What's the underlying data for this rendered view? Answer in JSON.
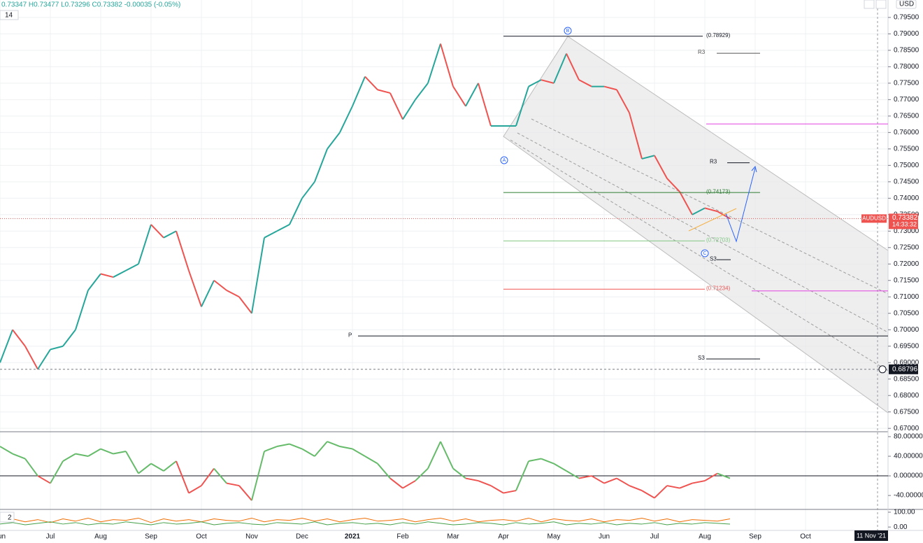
{
  "header": {
    "ohlc": "0.73347 H0.73477 L0.73296 C0.73382 -0.00035 (-0.05%)",
    "interval": "14",
    "currency": "USD",
    "symbol": "AUDUSD",
    "countdown": "14:33:32",
    "crosshair_date": "11 Nov '21",
    "sub_interval": "2",
    "wave_labels": [
      "A",
      "B",
      "C"
    ]
  },
  "chart_data": [
    {
      "type": "line",
      "color_rule": "direction",
      "up_color": "#26a69a",
      "down_color": "#ef5350",
      "categories": [
        "Jun",
        null,
        null,
        null,
        "Jul",
        null,
        null,
        null,
        "Aug",
        null,
        null,
        null,
        "Sep",
        null,
        null,
        null,
        "Oct",
        null,
        null,
        null,
        "Nov",
        null,
        null,
        null,
        "Dec",
        null,
        null,
        null,
        "2021",
        null,
        null,
        null,
        "Feb",
        null,
        null,
        null,
        "Mar",
        null,
        null,
        null,
        "Apr",
        null,
        null,
        null,
        "May",
        null,
        null,
        null,
        "Jun",
        null,
        null,
        null,
        "Jul",
        null,
        null,
        null,
        "Aug",
        null,
        null,
        null,
        "Sep",
        null,
        null,
        null,
        "Oct"
      ],
      "values": [
        0.69,
        0.7,
        0.695,
        0.688,
        0.694,
        0.695,
        0.7,
        0.712,
        0.717,
        0.716,
        0.718,
        0.72,
        0.732,
        0.728,
        0.73,
        0.718,
        0.707,
        0.715,
        0.712,
        0.71,
        0.705,
        0.728,
        0.73,
        0.732,
        0.74,
        0.745,
        0.755,
        0.76,
        0.768,
        0.777,
        0.773,
        0.772,
        0.764,
        0.77,
        0.775,
        0.787,
        0.774,
        0.768,
        0.775,
        0.762,
        0.762,
        0.762,
        0.774,
        0.776,
        0.775,
        0.784,
        0.776,
        0.774,
        0.774,
        0.773,
        0.766,
        0.752,
        0.753,
        0.746,
        0.742,
        0.735,
        0.737,
        0.736,
        0.73382,
        null,
        null,
        null,
        null,
        null,
        null
      ],
      "ylim": [
        0.6694,
        0.8003
      ],
      "yticks": [
        {
          "value": 0.67,
          "label": "0.67000"
        },
        {
          "value": 0.675,
          "label": "0.67500"
        },
        {
          "value": 0.68,
          "label": "0.68000"
        },
        {
          "value": 0.685,
          "label": "0.68500"
        },
        {
          "value": 0.69,
          "label": "0.69000"
        },
        {
          "value": 0.695,
          "label": "0.69500"
        },
        {
          "value": 0.7,
          "label": "0.70000"
        },
        {
          "value": 0.705,
          "label": "0.70500"
        },
        {
          "value": 0.71,
          "label": "0.71000"
        },
        {
          "value": 0.715,
          "label": "0.71500"
        },
        {
          "value": 0.72,
          "label": "0.72000"
        },
        {
          "value": 0.725,
          "label": "0.72500"
        },
        {
          "value": 0.73,
          "label": "0.73000"
        },
        {
          "value": 0.735,
          "label": "0.73500"
        },
        {
          "value": 0.74,
          "label": "0.74000"
        },
        {
          "value": 0.745,
          "label": "0.74500"
        },
        {
          "value": 0.75,
          "label": "0.75000"
        },
        {
          "value": 0.755,
          "label": "0.75500"
        },
        {
          "value": 0.76,
          "label": "0.76000"
        },
        {
          "value": 0.765,
          "label": "0.76500"
        },
        {
          "value": 0.77,
          "label": "0.77000"
        },
        {
          "value": 0.775,
          "label": "0.77500"
        },
        {
          "value": 0.78,
          "label": "0.78000"
        },
        {
          "value": 0.785,
          "label": "0.78500"
        },
        {
          "value": 0.79,
          "label": "0.79000"
        },
        {
          "value": 0.795,
          "label": "0.79500"
        }
      ],
      "grid": true,
      "current_price": 0.73382,
      "crosshair": 0.68796,
      "levels": [
        {
          "value": 0.78929,
          "label": "(0.78929)",
          "color": "#131722"
        },
        {
          "value": 0.7841,
          "label": "R3",
          "color": "#555555"
        },
        {
          "value": 0.7626,
          "color": "#e040e0"
        },
        {
          "value": 0.7508,
          "label": "R3",
          "color": "#131722"
        },
        {
          "value": 0.74173,
          "label": "(0.74173)",
          "color": "#2e7d32"
        },
        {
          "value": 0.72703,
          "label": "(0.72703)",
          "color": "#81c784"
        },
        {
          "value": 0.7213,
          "label": "S3",
          "color": "#131722"
        },
        {
          "value": 0.71234,
          "label": "(0.71234)",
          "color": "#ef5350"
        },
        {
          "value": 0.7118,
          "color": "#e040e0"
        },
        {
          "value": 0.6981,
          "label": "P",
          "color": "#131722"
        },
        {
          "value": 0.6911,
          "label": "S3",
          "color": "#131722"
        }
      ]
    },
    {
      "type": "line",
      "color_rule": "sign",
      "up_color": "#66bb6a",
      "down_color": "#ef5350",
      "values": [
        60,
        45,
        35,
        0,
        -15,
        30,
        45,
        40,
        55,
        45,
        50,
        5,
        25,
        10,
        30,
        -35,
        -20,
        15,
        -15,
        -20,
        -50,
        50,
        60,
        65,
        55,
        40,
        70,
        60,
        55,
        40,
        25,
        -5,
        -25,
        -10,
        15,
        70,
        15,
        -5,
        -10,
        -20,
        -35,
        -30,
        30,
        35,
        25,
        10,
        -5,
        0,
        -15,
        -5,
        -20,
        -30,
        -45,
        -20,
        -25,
        -15,
        -10,
        5,
        -5,
        null,
        null,
        null,
        null,
        null,
        null
      ],
      "ylim": [
        -67,
        90
      ],
      "yticks": [
        {
          "value": 80,
          "label": "80.000000"
        },
        {
          "value": 40,
          "label": "40.000000"
        },
        {
          "value": 0,
          "label": "0.000000"
        },
        {
          "value": -40,
          "label": "-40.000000"
        }
      ],
      "zero_line": true
    },
    {
      "type": "multiline",
      "series": [
        {
          "color": "#ef6c00",
          "values": [
            40,
            55,
            35,
            50,
            30,
            55,
            40,
            60,
            35,
            50,
            45,
            60,
            30,
            55,
            40,
            50,
            35,
            55,
            45,
            40,
            60,
            35,
            50,
            45,
            60,
            40,
            55,
            35,
            50,
            60,
            40,
            45,
            55,
            35,
            50,
            60,
            40,
            55,
            35,
            45,
            50,
            40,
            60,
            35,
            55,
            45,
            40,
            55,
            35,
            50,
            45,
            60,
            40,
            55,
            35,
            50,
            45,
            40,
            55,
            null,
            null,
            null,
            null,
            null,
            null
          ]
        },
        {
          "color": "#43a047",
          "values": [
            20,
            30,
            15,
            25,
            35,
            20,
            30,
            15,
            25,
            20,
            35,
            25,
            15,
            30,
            20,
            25,
            35,
            15,
            25,
            30,
            20,
            15,
            30,
            25,
            20,
            35,
            15,
            25,
            30,
            20,
            25,
            15,
            30,
            20,
            35,
            25,
            15,
            20,
            30,
            25,
            15,
            30,
            20,
            25,
            35,
            15,
            25,
            20,
            30,
            15,
            25,
            20,
            30,
            15,
            25,
            20,
            30,
            25,
            20,
            null,
            null,
            null,
            null,
            null,
            null
          ]
        }
      ],
      "ylim": [
        -18,
        114
      ],
      "yticks": [
        {
          "value": 100,
          "label": "100.00"
        },
        {
          "value": 0,
          "label": "0.00"
        }
      ]
    }
  ]
}
